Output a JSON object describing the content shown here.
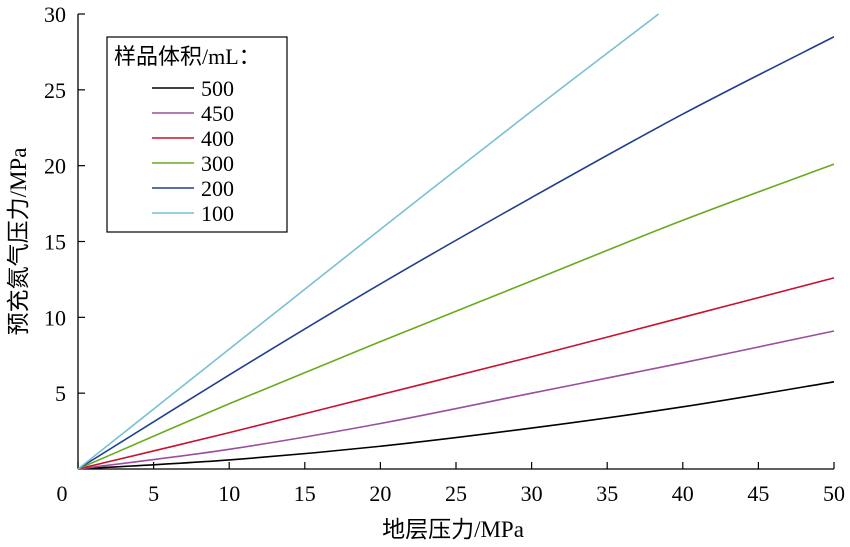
{
  "chart_data": {
    "type": "line",
    "xlabel": "地层压力/MPa",
    "ylabel": "预充氮气压力/MPa",
    "xlim": [
      0,
      50
    ],
    "ylim": [
      0,
      30
    ],
    "x_ticks": [
      0,
      5,
      10,
      15,
      20,
      25,
      30,
      35,
      40,
      45,
      50
    ],
    "y_ticks": [
      5,
      10,
      15,
      20,
      25,
      30
    ],
    "legend_title": "样品体积/mL：",
    "legend_position": "top-left",
    "grid": false,
    "series": [
      {
        "name": "500",
        "color": "#000000",
        "x": [
          0,
          10,
          20,
          30,
          40,
          50
        ],
        "y": [
          0,
          0.6,
          1.5,
          2.7,
          4.1,
          5.75
        ]
      },
      {
        "name": "450",
        "color": "#9a4f9e",
        "x": [
          0,
          10,
          20,
          30,
          40,
          50
        ],
        "y": [
          0,
          1.3,
          3.0,
          5.0,
          7.0,
          9.1
        ]
      },
      {
        "name": "400",
        "color": "#c8102e",
        "x": [
          0,
          10,
          20,
          30,
          40,
          50
        ],
        "y": [
          0,
          2.4,
          4.9,
          7.4,
          10.0,
          12.6
        ]
      },
      {
        "name": "300",
        "color": "#6aaa1e",
        "x": [
          0,
          10,
          20,
          30,
          40,
          50
        ],
        "y": [
          0,
          4.3,
          8.4,
          12.4,
          16.4,
          20.1
        ]
      },
      {
        "name": "200",
        "color": "#1f3f8f",
        "x": [
          0,
          10,
          20,
          30,
          40,
          50
        ],
        "y": [
          0,
          6.2,
          12.2,
          17.9,
          23.4,
          28.5
        ]
      },
      {
        "name": "100",
        "color": "#7bbfd4",
        "x": [
          0,
          10,
          20,
          30,
          38.4
        ],
        "y": [
          0,
          7.9,
          15.8,
          23.6,
          30.0
        ]
      }
    ]
  }
}
